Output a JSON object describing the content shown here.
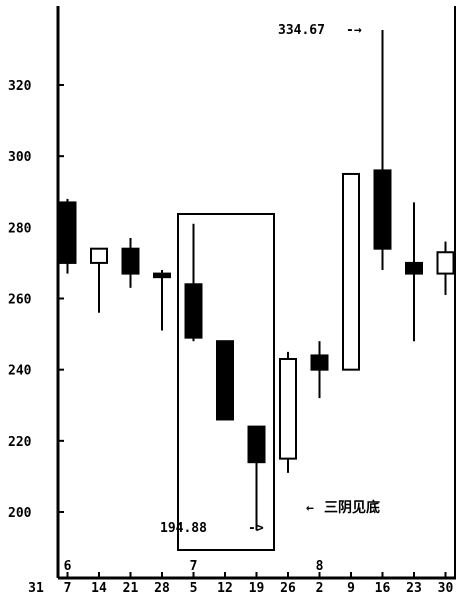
{
  "chart_data": {
    "type": "candlestick",
    "ylim": [
      190,
      338
    ],
    "y_ticks": [
      200,
      220,
      240,
      260,
      280,
      300,
      320
    ],
    "y_tick_labels": [
      "200",
      "220",
      "240",
      "260",
      "280",
      "300",
      "320"
    ],
    "x_tick_labels": [
      "31",
      "7",
      "14",
      "21",
      "28",
      "5",
      "12",
      "19",
      "26",
      "2",
      "9",
      "16",
      "23",
      "30"
    ],
    "month_labels": [
      {
        "text": "6",
        "at_index": 1
      },
      {
        "text": "7",
        "at_index": 5
      },
      {
        "text": "8",
        "at_index": 9
      }
    ],
    "candles": [
      {
        "date": "7",
        "open": 270,
        "close": 287,
        "high": 288,
        "low": 267,
        "color": "black"
      },
      {
        "date": "14",
        "open": 270,
        "close": 274,
        "high": 274,
        "low": 256,
        "color": "white"
      },
      {
        "date": "21",
        "open": 274,
        "close": 267,
        "high": 277,
        "low": 263,
        "color": "black"
      },
      {
        "date": "28",
        "open": 267,
        "close": 266,
        "high": 268,
        "low": 251,
        "color": "black"
      },
      {
        "date": "5",
        "open": 264,
        "close": 249,
        "high": 281,
        "low": 248,
        "color": "black"
      },
      {
        "date": "12",
        "open": 248,
        "close": 226,
        "high": 248,
        "low": 226,
        "color": "black"
      },
      {
        "date": "19",
        "open": 224,
        "close": 214,
        "high": 224,
        "low": 194.88,
        "color": "black"
      },
      {
        "date": "26",
        "open": 215,
        "close": 243,
        "high": 245,
        "low": 211,
        "color": "white"
      },
      {
        "date": "2",
        "open": 244,
        "close": 240,
        "high": 248,
        "low": 232,
        "color": "black"
      },
      {
        "date": "9",
        "open": 240,
        "close": 295,
        "high": 295,
        "low": 240,
        "color": "white"
      },
      {
        "date": "16",
        "open": 296,
        "close": 274,
        "high": 334.67,
        "low": 268,
        "color": "black"
      },
      {
        "date": "23",
        "open": 270,
        "close": 267,
        "high": 287,
        "low": 248,
        "color": "black"
      },
      {
        "date": "30",
        "open": 267,
        "close": 273,
        "high": 276,
        "low": 261,
        "color": "white"
      }
    ],
    "annotations": {
      "high_label": "334.67",
      "low_label": "194.88",
      "pattern_label": "三阴见底"
    }
  }
}
